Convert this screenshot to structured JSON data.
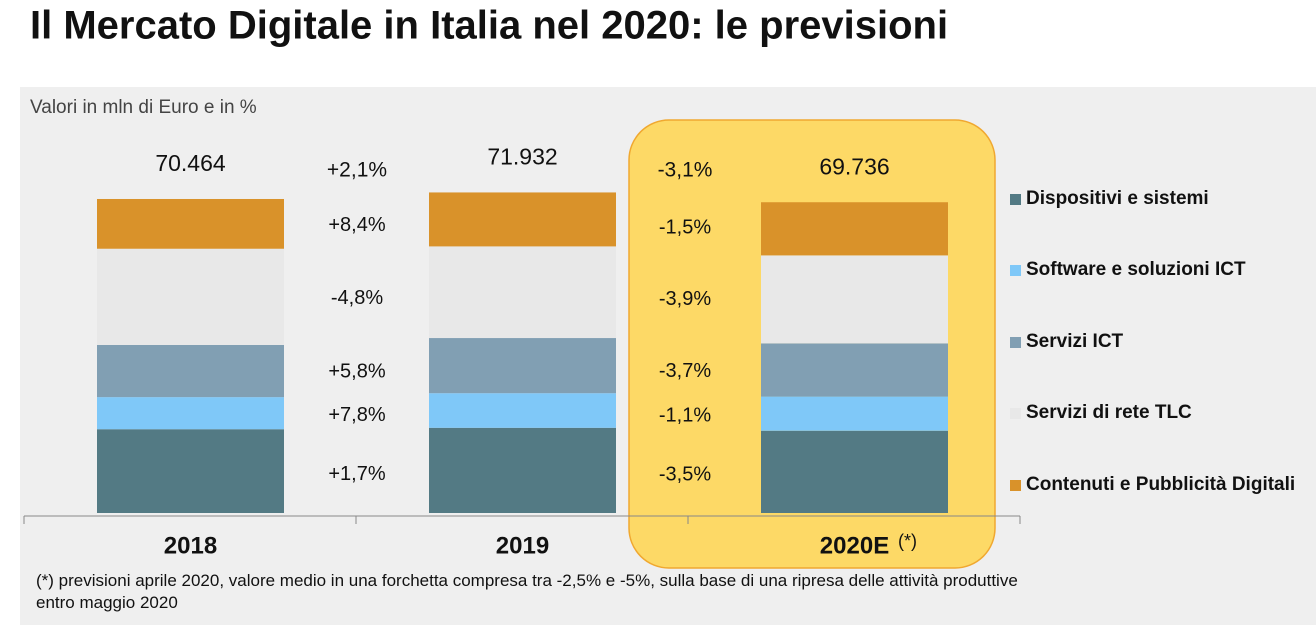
{
  "chart_data": {
    "type": "bar",
    "stacked": true,
    "title": "Il Mercato Digitale in Italia nel 2020: le previsioni",
    "subtitle": "Valori in mln di Euro e in %",
    "categories": [
      "2018",
      "2019",
      "2020E"
    ],
    "forecast_mark": "(*)",
    "ylim": [
      0,
      80000
    ],
    "series": [
      {
        "name": "Dispositivi e sistemi",
        "color": "#537a84",
        "values": [
          18800,
          19120,
          18451
        ]
      },
      {
        "name": "Software e soluzioni ICT",
        "color": "#7fc8f8",
        "values": [
          7200,
          7762,
          7677
        ]
      },
      {
        "name": "Servizi ICT",
        "color": "#819fb3",
        "values": [
          11700,
          12379,
          11921
        ]
      },
      {
        "name": "Servizi di rete TLC",
        "color": "#e8e8e8",
        "values": [
          21600,
          20563,
          19761
        ]
      },
      {
        "name": "Contenuti e Pubblicità Digitali",
        "color": "#d9922a",
        "values": [
          11164,
          12108,
          11926
        ]
      }
    ],
    "totals": [
      70464,
      71932,
      69736
    ],
    "value_labels": [
      "70.464",
      "71.932",
      "69.736"
    ],
    "growth": [
      {
        "total": "+2,1%",
        "segments": [
          "+1,7%",
          "+7,8%",
          "+5,8%",
          "-4,8%",
          "+8,4%"
        ]
      },
      {
        "total": "-3,1%",
        "segments": [
          "-3,5%",
          "-1,1%",
          "-3,7%",
          "-3,9%",
          "-1,5%"
        ]
      }
    ],
    "footnote": "(*) previsioni aprile 2020, valore medio in una forchetta compresa tra -2,5% e -5%, sulla base di una ripresa delle attività produttive entro maggio 2020"
  }
}
